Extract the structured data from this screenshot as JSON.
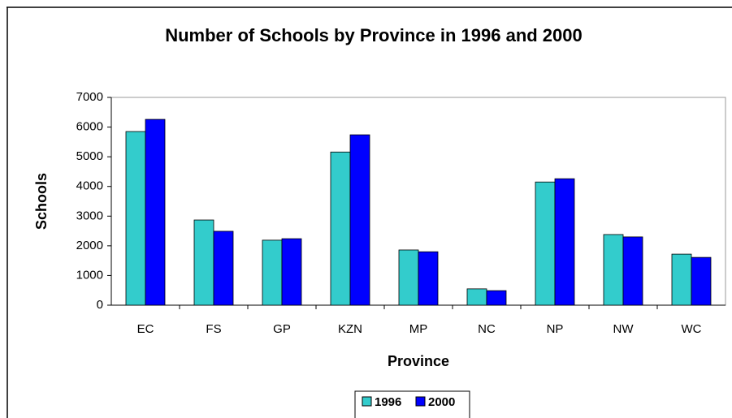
{
  "chart_data": {
    "type": "bar",
    "title": "Number of Schools by Province in 1996 and 2000",
    "x_label": "Province",
    "y_label": "Schools",
    "categories": [
      "EC",
      "FS",
      "GP",
      "KZN",
      "MP",
      "NC",
      "NP",
      "NW",
      "WC"
    ],
    "series": [
      {
        "name": "1996",
        "color": "#33cccc",
        "values": [
          5850,
          2870,
          2190,
          5160,
          1860,
          550,
          4150,
          2380,
          1720
        ]
      },
      {
        "name": "2000",
        "color": "#0000ff",
        "values": [
          6260,
          2490,
          2240,
          5740,
          1800,
          490,
          4260,
          2300,
          1610
        ]
      }
    ],
    "ylim": [
      0,
      7000
    ],
    "yticks": [
      0,
      1000,
      2000,
      3000,
      4000,
      5000,
      6000,
      7000
    ],
    "grid": false,
    "legend": "bottom"
  }
}
